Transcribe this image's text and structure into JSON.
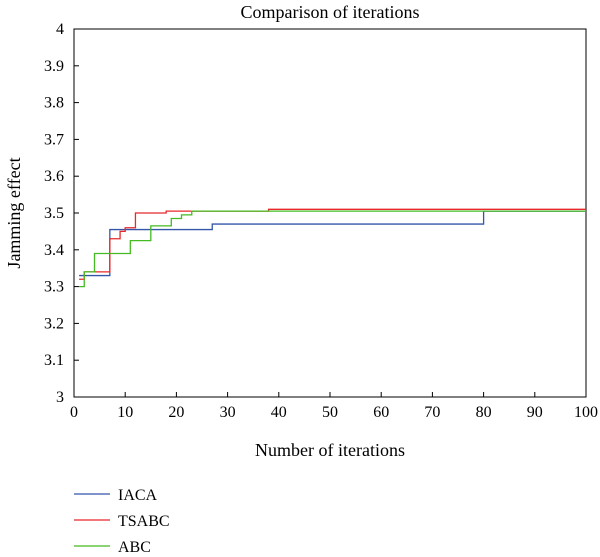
{
  "chart_data": {
    "type": "line",
    "title": "Comparison of iterations",
    "xlabel": "Number of iterations",
    "ylabel": "Jamming effect",
    "xlim": [
      0,
      100
    ],
    "ylim": [
      3,
      4
    ],
    "xticks": [
      0,
      10,
      20,
      30,
      40,
      50,
      60,
      70,
      80,
      90,
      100
    ],
    "yticks": [
      3,
      3.1,
      3.2,
      3.3,
      3.4,
      3.5,
      3.6,
      3.7,
      3.8,
      3.9,
      4
    ],
    "grid": false,
    "legend_position": "bottom-left",
    "series": [
      {
        "name": "IACA",
        "color": "#3355aa",
        "step": true,
        "points": [
          [
            1,
            3.33
          ],
          [
            6,
            3.33
          ],
          [
            7,
            3.455
          ],
          [
            26,
            3.455
          ],
          [
            27,
            3.47
          ],
          [
            79,
            3.47
          ],
          [
            80,
            3.505
          ],
          [
            100,
            3.505
          ]
        ]
      },
      {
        "name": "TSABC",
        "color": "#e8282a",
        "step": true,
        "points": [
          [
            1,
            3.32
          ],
          [
            2,
            3.34
          ],
          [
            5,
            3.34
          ],
          [
            7,
            3.43
          ],
          [
            9,
            3.45
          ],
          [
            10,
            3.46
          ],
          [
            12,
            3.5
          ],
          [
            17,
            3.5
          ],
          [
            18,
            3.505
          ],
          [
            23,
            3.505
          ],
          [
            38,
            3.51
          ],
          [
            100,
            3.51
          ]
        ]
      },
      {
        "name": "ABC",
        "color": "#44bb22",
        "step": true,
        "points": [
          [
            1,
            3.3
          ],
          [
            2,
            3.34
          ],
          [
            4,
            3.39
          ],
          [
            10,
            3.39
          ],
          [
            11,
            3.425
          ],
          [
            14,
            3.425
          ],
          [
            15,
            3.465
          ],
          [
            18,
            3.465
          ],
          [
            19,
            3.485
          ],
          [
            21,
            3.495
          ],
          [
            23,
            3.505
          ],
          [
            100,
            3.505
          ]
        ]
      }
    ]
  }
}
